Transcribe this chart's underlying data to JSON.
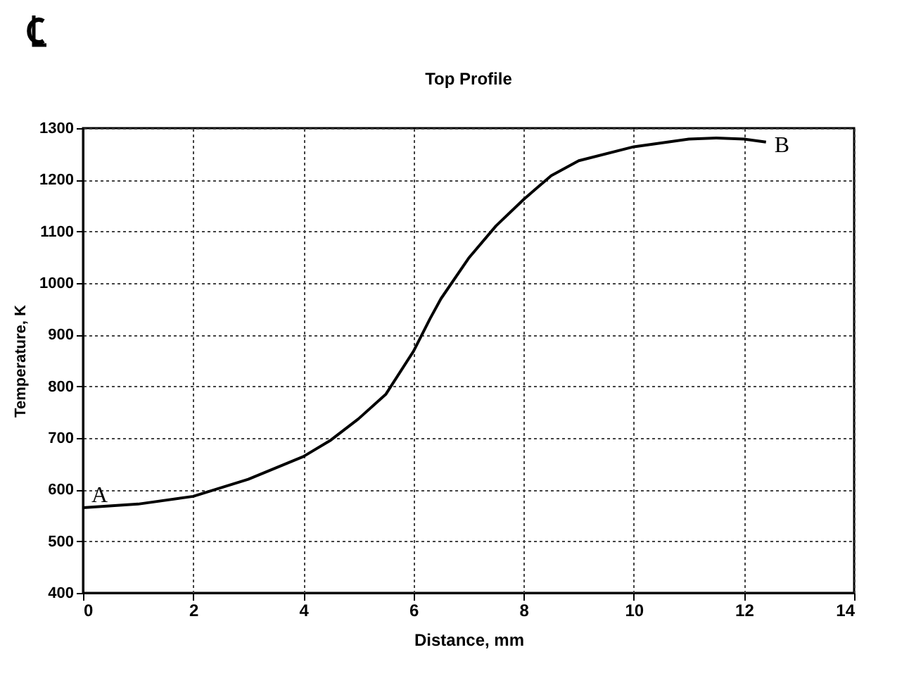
{
  "chart_data": {
    "type": "line",
    "title": "Top Profile",
    "xlabel": "Distance, mm",
    "ylabel": "Temperature, K",
    "x": [
      0,
      1,
      2,
      3,
      4,
      4.5,
      5,
      5.5,
      6,
      6.3,
      6.5,
      7,
      7.5,
      8,
      8.5,
      9,
      10,
      11,
      11.5,
      12,
      12.4
    ],
    "series": [
      {
        "color": "#000000",
        "values": [
          565,
          572,
          587,
          620,
          664,
          696,
          737,
          785,
          868,
          931,
          970,
          1048,
          1111,
          1162,
          1208,
          1237,
          1264,
          1279,
          1281,
          1279,
          1273
        ]
      }
    ],
    "xlim": [
      0,
      14
    ],
    "xticks": [
      0,
      2,
      4,
      6,
      8,
      10,
      12,
      14
    ],
    "ylim": [
      400,
      1300
    ],
    "yticks": [
      400,
      500,
      600,
      700,
      800,
      900,
      1000,
      1100,
      1200,
      1300
    ],
    "grid": true,
    "marker": "none",
    "line_style": "solid",
    "annotations": [
      {
        "text": "A",
        "x": 0,
        "y": 565
      },
      {
        "text": "B",
        "x": 12.4,
        "y": 1273
      }
    ]
  }
}
